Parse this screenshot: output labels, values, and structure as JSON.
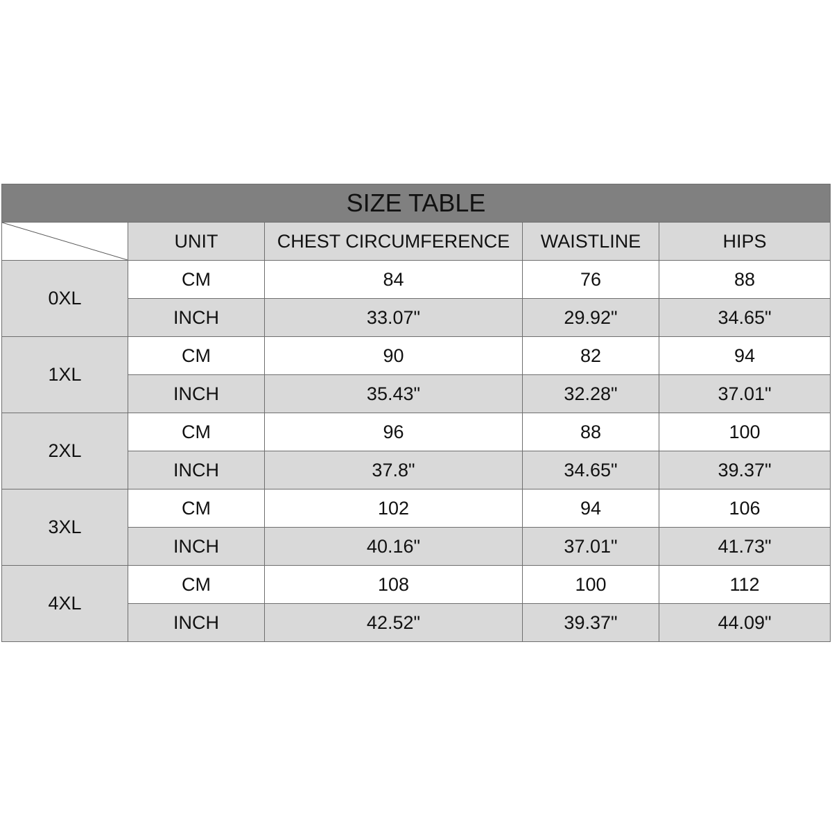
{
  "title": "SIZE TABLE",
  "headers": [
    "UNIT",
    "CHEST CIRCUMFERENCE",
    "WAISTLINE",
    "HIPS"
  ],
  "colors": {
    "title_bg": "#808080",
    "cell_gray": "#d9d9d9",
    "cell_white": "#ffffff"
  },
  "rows": [
    {
      "size": "0XL",
      "cm": [
        "CM",
        "84",
        "76",
        "88"
      ],
      "inch": [
        "INCH",
        "33.07\"",
        "29.92\"",
        "34.65\""
      ]
    },
    {
      "size": "1XL",
      "cm": [
        "CM",
        "90",
        "82",
        "94"
      ],
      "inch": [
        "INCH",
        "35.43\"",
        "32.28\"",
        "37.01\""
      ]
    },
    {
      "size": "2XL",
      "cm": [
        "CM",
        "96",
        "88",
        "100"
      ],
      "inch": [
        "INCH",
        "37.8\"",
        "34.65\"",
        "39.37\""
      ]
    },
    {
      "size": "3XL",
      "cm": [
        "CM",
        "102",
        "94",
        "106"
      ],
      "inch": [
        "INCH",
        "40.16\"",
        "37.01\"",
        "41.73\""
      ]
    },
    {
      "size": "4XL",
      "cm": [
        "CM",
        "108",
        "100",
        "112"
      ],
      "inch": [
        "INCH",
        "42.52\"",
        "39.37\"",
        "44.09\""
      ]
    }
  ]
}
